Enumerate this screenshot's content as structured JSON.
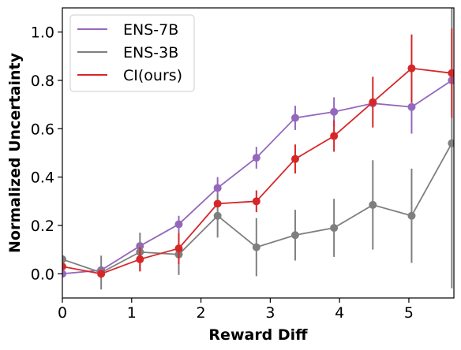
{
  "chart_data": {
    "type": "line",
    "title": "",
    "xlabel": "Reward Diff",
    "ylabel": "Normalized Uncertainty",
    "xlim": [
      0,
      5.65
    ],
    "ylim": [
      -0.1,
      1.1
    ],
    "xticks": [
      0,
      1,
      2,
      3,
      4,
      5
    ],
    "yticks": [
      0.0,
      0.2,
      0.4,
      0.6,
      0.8,
      1.0
    ],
    "xtick_labels": [
      "0",
      "1",
      "2",
      "3",
      "4",
      "5"
    ],
    "ytick_labels": [
      "0.0",
      "0.2",
      "0.4",
      "0.6",
      "0.8",
      "1.0"
    ],
    "grid": false,
    "legend_position": "top-left",
    "x": [
      0.0,
      0.56,
      1.12,
      1.68,
      2.24,
      2.8,
      3.36,
      3.92,
      4.48,
      5.04,
      5.62
    ],
    "series": [
      {
        "name": "ENS-7B",
        "color": "#9467bd",
        "values": [
          0.0,
          0.015,
          0.115,
          0.205,
          0.355,
          0.48,
          0.645,
          0.67,
          0.705,
          0.69,
          0.8
        ],
        "errors": [
          0.0,
          0.0,
          0.0,
          0.035,
          0.045,
          0.045,
          0.05,
          0.06,
          0.0,
          0.11,
          0.0
        ]
      },
      {
        "name": "ENS-3B",
        "color": "#7f7f7f",
        "values": [
          0.06,
          0.005,
          0.09,
          0.08,
          0.24,
          0.11,
          0.16,
          0.19,
          0.285,
          0.24,
          0.54
        ],
        "errors": [
          0.0,
          0.07,
          0.08,
          0.085,
          0.09,
          0.12,
          0.105,
          0.12,
          0.185,
          0.195,
          0.6
        ]
      },
      {
        "name": "CI(ours)",
        "color": "#d62728",
        "values": [
          0.03,
          0.0,
          0.06,
          0.105,
          0.29,
          0.3,
          0.475,
          0.57,
          0.71,
          0.85,
          0.83
        ],
        "errors": [
          0.0,
          0.0,
          0.05,
          0.065,
          0.0,
          0.045,
          0.06,
          0.065,
          0.105,
          0.14,
          0.185
        ]
      }
    ]
  }
}
